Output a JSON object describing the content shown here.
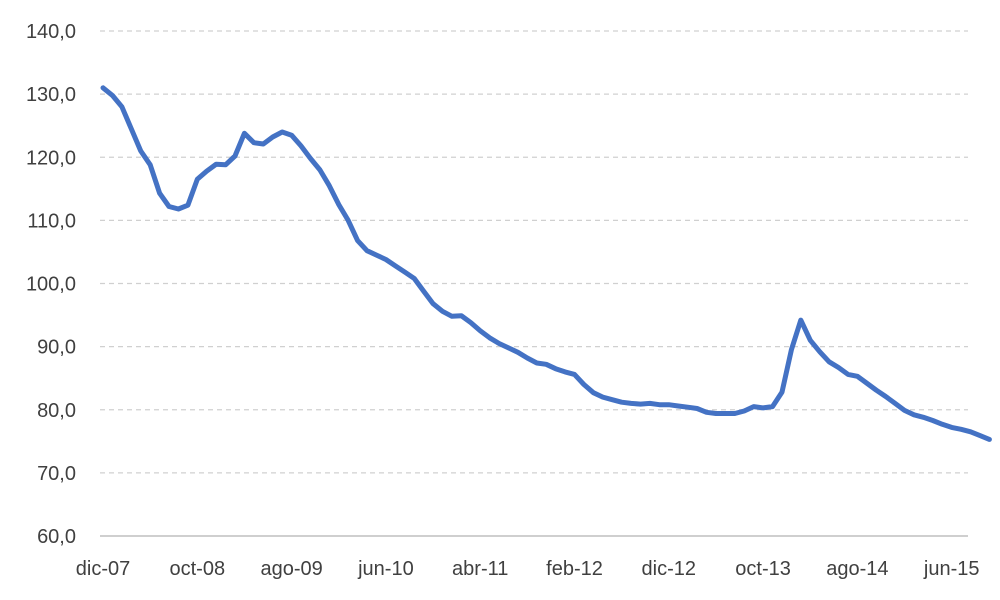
{
  "chart_data": {
    "type": "line",
    "title": "",
    "xlabel": "",
    "ylabel": "",
    "ylim": [
      60,
      140
    ],
    "yticks": [
      "60,0",
      "70,0",
      "80,0",
      "90,0",
      "100,0",
      "110,0",
      "120,0",
      "130,0",
      "140,0"
    ],
    "xtick_labels": [
      "dic-07",
      "oct-08",
      "ago-09",
      "jun-10",
      "abr-11",
      "feb-12",
      "dic-12",
      "oct-13",
      "ago-14",
      "jun-15"
    ],
    "grid": true,
    "legend": "none",
    "line_color": "#4472c4",
    "series": [
      {
        "x": [
          "dic-07",
          "ene-08",
          "feb-08",
          "mar-08",
          "abr-08",
          "may-08",
          "jun-08",
          "jul-08",
          "ago-08",
          "sep-08",
          "oct-08",
          "nov-08",
          "dic-08",
          "ene-09",
          "feb-09",
          "mar-09",
          "abr-09",
          "may-09",
          "jun-09",
          "jul-09",
          "ago-09",
          "sep-09",
          "oct-09",
          "nov-09",
          "dic-09",
          "ene-10",
          "feb-10",
          "mar-10",
          "abr-10",
          "may-10",
          "jun-10",
          "jul-10",
          "ago-10",
          "sep-10",
          "oct-10",
          "nov-10",
          "dic-10",
          "ene-11",
          "feb-11",
          "mar-11",
          "abr-11",
          "may-11",
          "jun-11",
          "jul-11",
          "ago-11",
          "sep-11",
          "oct-11",
          "nov-11",
          "dic-11",
          "ene-12",
          "feb-12",
          "mar-12",
          "abr-12",
          "may-12",
          "jun-12",
          "jul-12",
          "ago-12",
          "sep-12",
          "oct-12",
          "nov-12",
          "dic-12",
          "ene-13",
          "feb-13",
          "mar-13",
          "abr-13",
          "may-13",
          "jun-13",
          "jul-13",
          "ago-13",
          "sep-13",
          "oct-13",
          "nov-13",
          "dic-13",
          "ene-14",
          "feb-14",
          "mar-14",
          "abr-14",
          "may-14",
          "jun-14",
          "jul-14",
          "ago-14",
          "sep-14",
          "oct-14",
          "nov-14",
          "dic-14",
          "ene-15",
          "feb-15",
          "mar-15",
          "abr-15",
          "may-15",
          "jun-15",
          "jul-15",
          "ago-15",
          "sep-15",
          "oct-15"
        ],
        "values": [
          131.0,
          129.8,
          128.0,
          124.5,
          121.0,
          118.8,
          114.3,
          112.2,
          111.8,
          112.4,
          116.5,
          117.8,
          118.9,
          118.8,
          120.2,
          123.8,
          122.3,
          122.1,
          123.2,
          124.0,
          123.5,
          121.8,
          119.8,
          118.0,
          115.5,
          112.5,
          110.0,
          106.8,
          105.2,
          104.5,
          103.8,
          102.8,
          101.8,
          100.8,
          98.8,
          96.8,
          95.6,
          94.8,
          94.9,
          93.8,
          92.5,
          91.4,
          90.5,
          89.8,
          89.1,
          88.2,
          87.4,
          87.2,
          86.5,
          86.0,
          85.6,
          84.0,
          82.7,
          82.0,
          81.6,
          81.2,
          81.0,
          80.9,
          81.0,
          80.8,
          80.8,
          80.6,
          80.4,
          80.2,
          79.6,
          79.4,
          79.4,
          79.4,
          79.8,
          80.5,
          80.3,
          80.5,
          82.8,
          89.5,
          94.2,
          91.0,
          89.2,
          87.6,
          86.7,
          85.6,
          85.3,
          84.2,
          83.1,
          82.1,
          81.0,
          79.9,
          79.2,
          78.8,
          78.3,
          77.7,
          77.2,
          76.9,
          76.5,
          75.9,
          75.3
        ]
      }
    ]
  }
}
